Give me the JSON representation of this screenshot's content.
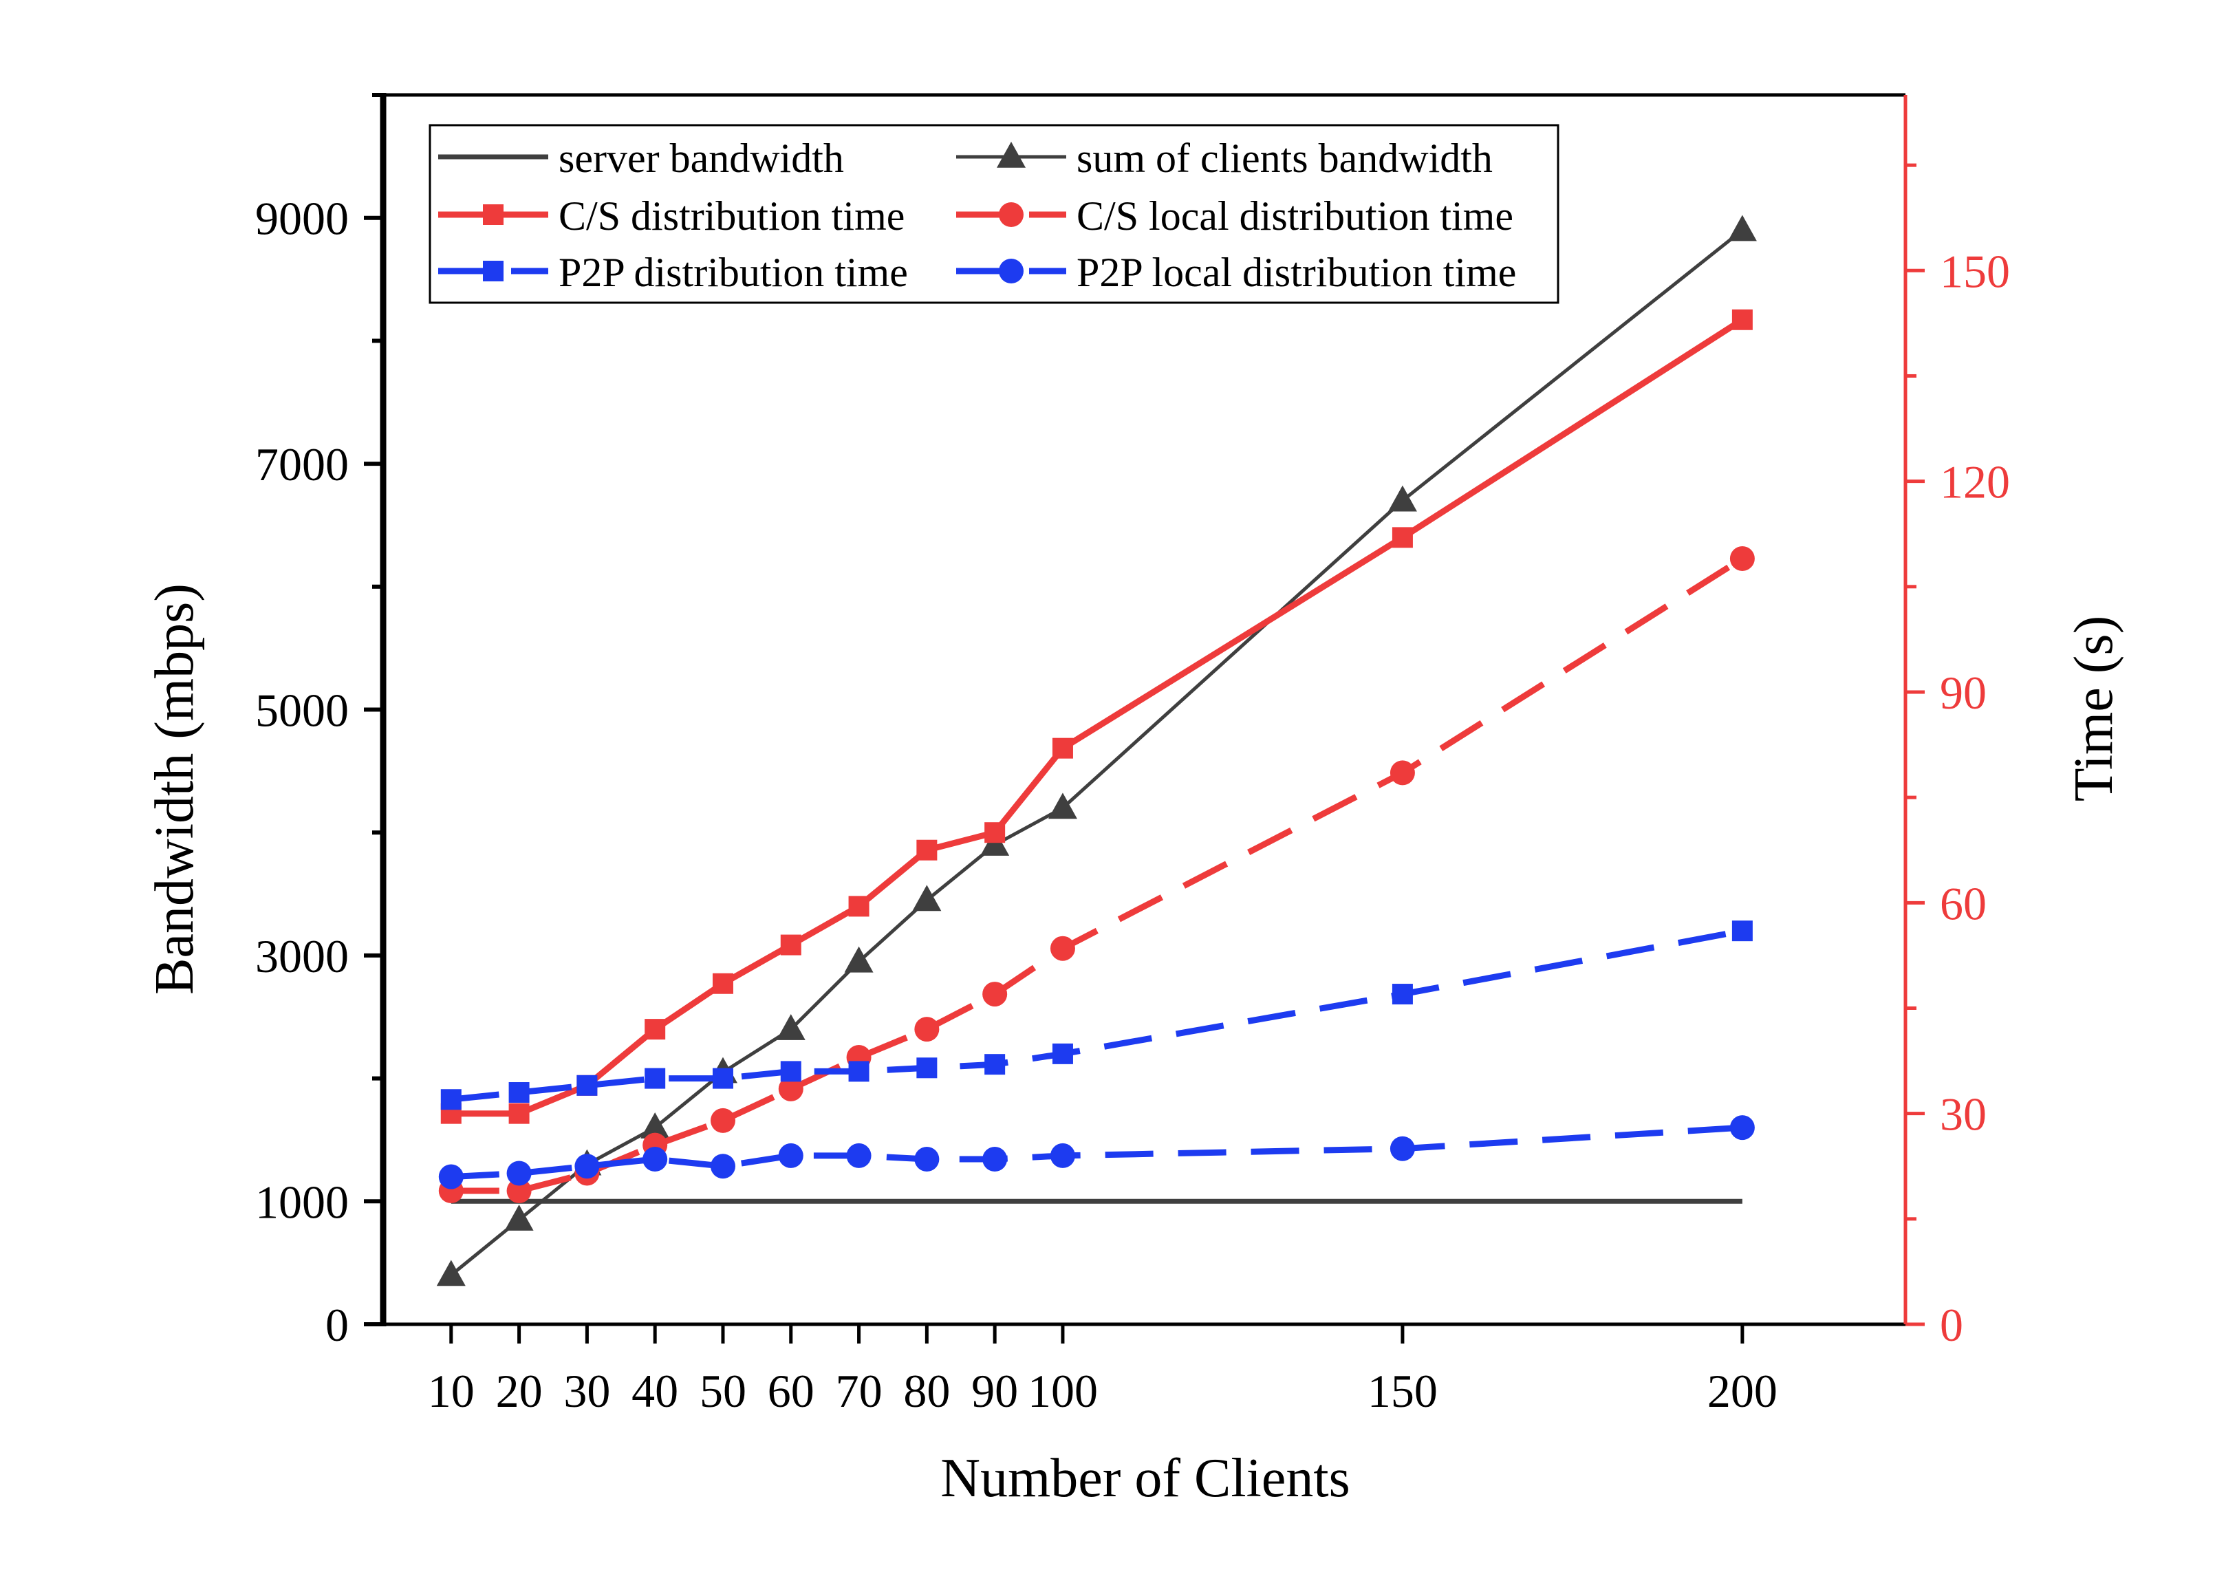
{
  "chart_data": {
    "type": "line",
    "xlabel": "Number of Clients",
    "ylabel_left": "Bandwidth (mbps)",
    "ylabel_right": "Time (s)",
    "x": [
      10,
      20,
      30,
      40,
      50,
      60,
      70,
      80,
      90,
      100,
      150,
      200
    ],
    "x_ticks": [
      10,
      20,
      30,
      40,
      50,
      60,
      70,
      80,
      90,
      100,
      150,
      200
    ],
    "x_tick_labels": [
      "10",
      "20",
      "30",
      "40",
      "50",
      "60",
      "70",
      "80",
      "90",
      "100",
      "150",
      "200"
    ],
    "xlim": [
      0,
      224
    ],
    "ylim_left": [
      0,
      10000
    ],
    "ylim_right": [
      0,
      175
    ],
    "y_left_ticks": [
      0,
      1000,
      3000,
      5000,
      7000,
      9000
    ],
    "y_left_tick_labels": [
      "0",
      "1000",
      "3000",
      "5000",
      "7000",
      "9000"
    ],
    "y_right_ticks": [
      0,
      30,
      60,
      90,
      120,
      150
    ],
    "y_right_tick_labels": [
      "0",
      "30",
      "60",
      "90",
      "120",
      "150"
    ],
    "grid": false,
    "legend_position": "top-left",
    "colors": {
      "server": "#3f3f3f",
      "clients_sum": "#3f3f3f",
      "cs": "#ee3b3b",
      "p2p": "#1d3bf0",
      "right_axis": "#ee3b3b"
    },
    "series": [
      {
        "name": "server bandwidth",
        "axis": "left",
        "marker": "none",
        "dash": "solid",
        "color": "#3f3f3f",
        "values": [
          1000,
          1000,
          1000,
          1000,
          1000,
          1000,
          1000,
          1000,
          1000,
          1000,
          1000,
          1000
        ]
      },
      {
        "name": "sum of clients bandwidth",
        "axis": "left",
        "marker": "triangle",
        "dash": "solid",
        "color": "#3f3f3f",
        "values": [
          400,
          850,
          1300,
          1600,
          2050,
          2400,
          2950,
          3450,
          3900,
          4200,
          6700,
          8900
        ]
      },
      {
        "name": "C/S distribution time",
        "axis": "right",
        "marker": "square",
        "dash": "solid",
        "color": "#ee3b3b",
        "values": [
          30,
          30,
          34,
          42,
          48.5,
          54,
          59.5,
          67.5,
          70,
          82,
          112,
          143
        ]
      },
      {
        "name": "C/S local distribution time",
        "axis": "right",
        "marker": "circle",
        "dash": "dashed",
        "color": "#ee3b3b",
        "values": [
          19,
          19,
          21.5,
          25.5,
          29,
          33.5,
          38,
          42,
          47,
          53.5,
          78.5,
          109
        ]
      },
      {
        "name": "P2P distribution time",
        "axis": "right",
        "marker": "square",
        "dash": "dashed",
        "color": "#1d3bf0",
        "values": [
          32,
          33,
          34,
          35,
          35,
          36,
          36,
          36.5,
          37,
          38.5,
          47,
          56
        ]
      },
      {
        "name": "P2P local distribution time",
        "axis": "right",
        "marker": "circle",
        "dash": "dashed",
        "color": "#1d3bf0",
        "values": [
          21,
          21.5,
          22.5,
          23.5,
          22.5,
          24,
          24,
          23.5,
          23.5,
          24,
          25,
          28
        ]
      }
    ]
  }
}
